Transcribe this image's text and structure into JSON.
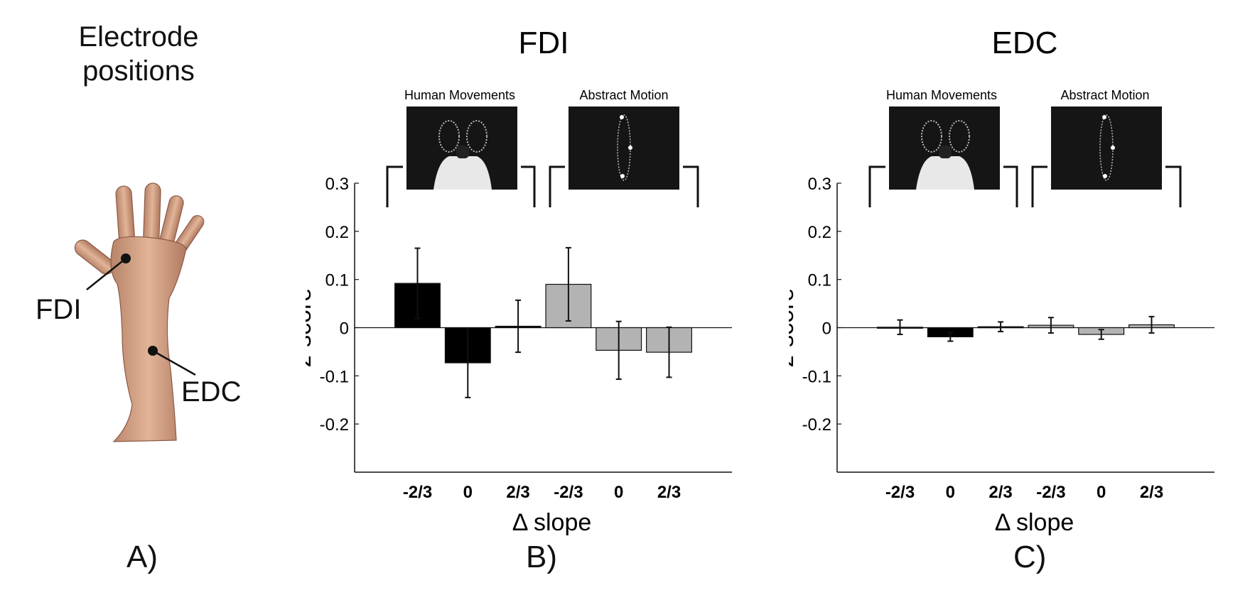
{
  "panelA": {
    "title_line1": "Electrode",
    "title_line2": "positions",
    "labels": {
      "fdi": "FDI",
      "edc": "EDC"
    },
    "letter": "A)"
  },
  "panelB": {
    "letter": "B)"
  },
  "panelC": {
    "letter": "C)"
  },
  "chart_data": [
    {
      "type": "bar",
      "title": "FDI",
      "xlabel": "Δ slope",
      "ylabel": "z-score",
      "ylim": [
        -0.3,
        0.3
      ],
      "yticks": [
        "0.3",
        "0.2",
        "0.1",
        "0",
        "-0.1",
        "-0.2"
      ],
      "groups": [
        {
          "name": "Human Movements",
          "color": "#000000",
          "categories": [
            "-2/3",
            "0",
            "2/3"
          ],
          "values": [
            0.092,
            -0.073,
            0.003
          ],
          "errors": [
            0.073,
            0.072,
            0.054
          ]
        },
        {
          "name": "Abstract Motion",
          "color": "#b3b3b3",
          "categories": [
            "-2/3",
            "0",
            "2/3"
          ],
          "values": [
            0.09,
            -0.047,
            -0.051
          ],
          "errors": [
            0.076,
            0.06,
            0.052
          ]
        }
      ]
    },
    {
      "type": "bar",
      "title": "EDC",
      "xlabel": "Δ slope",
      "ylabel": "z-score",
      "ylim": [
        -0.3,
        0.3
      ],
      "yticks": [
        "0.3",
        "0.2",
        "0.1",
        "0",
        "-0.1",
        "-0.2"
      ],
      "groups": [
        {
          "name": "Human Movements",
          "color": "#000000",
          "categories": [
            "-2/3",
            "0",
            "2/3"
          ],
          "values": [
            0.001,
            -0.019,
            0.002
          ],
          "errors": [
            0.015,
            0.009,
            0.01
          ]
        },
        {
          "name": "Abstract Motion",
          "color": "#b3b3b3",
          "categories": [
            "-2/3",
            "0",
            "2/3"
          ],
          "values": [
            0.005,
            -0.014,
            0.006
          ],
          "errors": [
            0.016,
            0.01,
            0.017
          ]
        }
      ]
    }
  ]
}
